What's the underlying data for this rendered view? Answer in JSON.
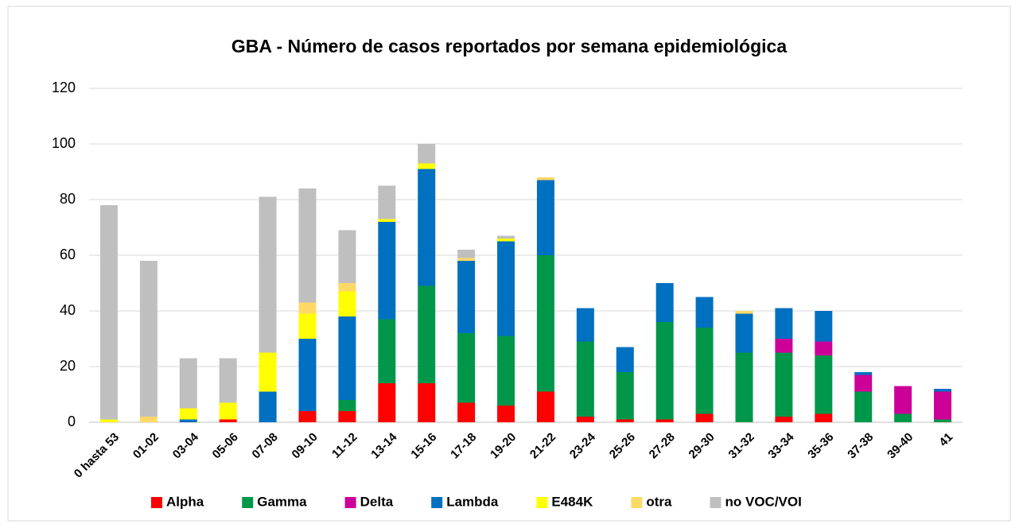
{
  "chart_data": {
    "type": "stacked_bar",
    "title": "GBA - Número de casos reportados por semana epidemiológica",
    "categories": [
      "0 hasta 53",
      "01-02",
      "03-04",
      "05-06",
      "07-08",
      "09-10",
      "11-12",
      "13-14",
      "15-16",
      "17-18",
      "19-20",
      "21-22",
      "23-24",
      "25-26",
      "27-28",
      "29-30",
      "31-32",
      "33-34",
      "35-36",
      "37-38",
      "39-40",
      "41"
    ],
    "series": [
      {
        "name": "Alpha",
        "color": "#ff0000",
        "values": [
          0,
          0,
          0,
          1,
          0,
          4,
          4,
          14,
          14,
          7,
          6,
          11,
          2,
          1,
          1,
          3,
          0,
          2,
          3,
          0,
          0,
          0
        ]
      },
      {
        "name": "Gamma",
        "color": "#00974a",
        "values": [
          0,
          0,
          0,
          0,
          0,
          0,
          4,
          23,
          35,
          25,
          25,
          49,
          27,
          17,
          35,
          31,
          25,
          23,
          21,
          11,
          3,
          1
        ]
      },
      {
        "name": "Delta",
        "color": "#cc0099",
        "values": [
          0,
          0,
          0,
          0,
          0,
          0,
          0,
          0,
          0,
          0,
          0,
          0,
          0,
          0,
          0,
          0,
          0,
          5,
          5,
          6,
          10,
          10
        ]
      },
      {
        "name": "Lambda",
        "color": "#0070c0",
        "values": [
          0,
          0,
          1,
          0,
          11,
          26,
          30,
          35,
          42,
          26,
          34,
          27,
          12,
          9,
          14,
          11,
          14,
          11,
          11,
          1,
          0,
          1
        ]
      },
      {
        "name": "E484K",
        "color": "#ffff00",
        "values": [
          1,
          0,
          4,
          6,
          14,
          9,
          9,
          1,
          2,
          0,
          1,
          0,
          0,
          0,
          0,
          0,
          0,
          0,
          0,
          0,
          0,
          0
        ]
      },
      {
        "name": "otra",
        "color": "#ffd966",
        "values": [
          0,
          2,
          0,
          0,
          0,
          4,
          3,
          0,
          0,
          1,
          0,
          1,
          0,
          0,
          0,
          0,
          1,
          0,
          0,
          0,
          0,
          0
        ]
      },
      {
        "name": "no VOC/VOI",
        "color": "#bfbfbf",
        "values": [
          77,
          56,
          18,
          16,
          56,
          41,
          19,
          12,
          7,
          3,
          1,
          0,
          0,
          0,
          0,
          0,
          0,
          0,
          0,
          0,
          0,
          0
        ]
      }
    ],
    "ylim": [
      0,
      120
    ],
    "yticks": [
      0,
      20,
      40,
      60,
      80,
      100,
      120
    ],
    "grid": true,
    "legend": "bottom"
  }
}
